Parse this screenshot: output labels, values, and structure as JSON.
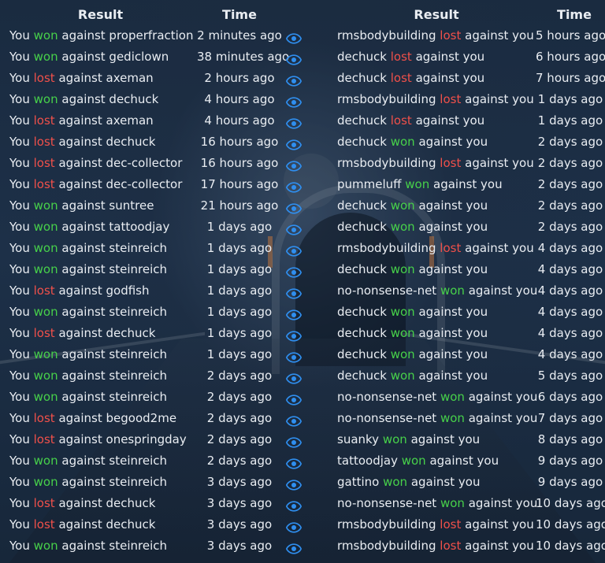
{
  "header": {
    "result_left": "Result",
    "time_left": "Time",
    "result_right": "Result",
    "time_right": "Time"
  },
  "colors": {
    "won": "#47d14a",
    "lost": "#f0504a",
    "eye": "#2f8ff0"
  },
  "icons": {
    "view": "eye-icon"
  },
  "rows": [
    {
      "left": {
        "prefix": "You",
        "outcome": "won",
        "suffix": "against properfraction",
        "time": "2 minutes ago"
      },
      "right": {
        "player": "rmsbodybuilding",
        "outcome": "lost",
        "suffix": "against you",
        "time": "5 hours ago"
      }
    },
    {
      "left": {
        "prefix": "You",
        "outcome": "won",
        "suffix": "against gediclown",
        "time": "38 minutes ago"
      },
      "right": {
        "player": "dechuck",
        "outcome": "lost",
        "suffix": "against you",
        "time": "6 hours ago"
      }
    },
    {
      "left": {
        "prefix": "You",
        "outcome": "lost",
        "suffix": "against axeman",
        "time": "2 hours ago"
      },
      "right": {
        "player": "dechuck",
        "outcome": "lost",
        "suffix": "against you",
        "time": "7 hours ago"
      }
    },
    {
      "left": {
        "prefix": "You",
        "outcome": "won",
        "suffix": "against dechuck",
        "time": "4 hours ago"
      },
      "right": {
        "player": "rmsbodybuilding",
        "outcome": "lost",
        "suffix": "against you",
        "time": "1 days ago"
      }
    },
    {
      "left": {
        "prefix": "You",
        "outcome": "lost",
        "suffix": "against axeman",
        "time": "4 hours ago"
      },
      "right": {
        "player": "dechuck",
        "outcome": "lost",
        "suffix": "against you",
        "time": "1 days ago"
      }
    },
    {
      "left": {
        "prefix": "You",
        "outcome": "lost",
        "suffix": "against dechuck",
        "time": "16 hours ago"
      },
      "right": {
        "player": "dechuck",
        "outcome": "won",
        "suffix": "against you",
        "time": "2 days ago"
      }
    },
    {
      "left": {
        "prefix": "You",
        "outcome": "lost",
        "suffix": "against dec-collector",
        "time": "16 hours ago"
      },
      "right": {
        "player": "rmsbodybuilding",
        "outcome": "lost",
        "suffix": "against you",
        "time": "2 days ago"
      }
    },
    {
      "left": {
        "prefix": "You",
        "outcome": "lost",
        "suffix": "against dec-collector",
        "time": "17 hours ago"
      },
      "right": {
        "player": "pummeluff",
        "outcome": "won",
        "suffix": "against you",
        "time": "2 days ago"
      }
    },
    {
      "left": {
        "prefix": "You",
        "outcome": "won",
        "suffix": "against suntree",
        "time": "21 hours ago"
      },
      "right": {
        "player": "dechuck",
        "outcome": "won",
        "suffix": "against you",
        "time": "2 days ago"
      }
    },
    {
      "left": {
        "prefix": "You",
        "outcome": "won",
        "suffix": "against tattoodjay",
        "time": "1 days ago"
      },
      "right": {
        "player": "dechuck",
        "outcome": "won",
        "suffix": "against you",
        "time": "2 days ago"
      }
    },
    {
      "left": {
        "prefix": "You",
        "outcome": "won",
        "suffix": "against steinreich",
        "time": "1 days ago"
      },
      "right": {
        "player": "rmsbodybuilding",
        "outcome": "lost",
        "suffix": "against you",
        "time": "4 days ago"
      }
    },
    {
      "left": {
        "prefix": "You",
        "outcome": "won",
        "suffix": "against steinreich",
        "time": "1 days ago"
      },
      "right": {
        "player": "dechuck",
        "outcome": "won",
        "suffix": "against you",
        "time": "4 days ago"
      }
    },
    {
      "left": {
        "prefix": "You",
        "outcome": "lost",
        "suffix": "against godfish",
        "time": "1 days ago"
      },
      "right": {
        "player": "no-nonsense-net",
        "outcome": "won",
        "suffix": "against you",
        "time": "4 days ago"
      }
    },
    {
      "left": {
        "prefix": "You",
        "outcome": "won",
        "suffix": "against steinreich",
        "time": "1 days ago"
      },
      "right": {
        "player": "dechuck",
        "outcome": "won",
        "suffix": "against you",
        "time": "4 days ago"
      }
    },
    {
      "left": {
        "prefix": "You",
        "outcome": "lost",
        "suffix": "against dechuck",
        "time": "1 days ago"
      },
      "right": {
        "player": "dechuck",
        "outcome": "won",
        "suffix": "against you",
        "time": "4 days ago"
      }
    },
    {
      "left": {
        "prefix": "You",
        "outcome": "won",
        "suffix": "against steinreich",
        "time": "1 days ago"
      },
      "right": {
        "player": "dechuck",
        "outcome": "won",
        "suffix": "against you",
        "time": "4 days ago"
      }
    },
    {
      "left": {
        "prefix": "You",
        "outcome": "won",
        "suffix": "against steinreich",
        "time": "2 days ago"
      },
      "right": {
        "player": "dechuck",
        "outcome": "won",
        "suffix": "against you",
        "time": "5 days ago"
      }
    },
    {
      "left": {
        "prefix": "You",
        "outcome": "won",
        "suffix": "against steinreich",
        "time": "2 days ago"
      },
      "right": {
        "player": "no-nonsense-net",
        "outcome": "won",
        "suffix": "against you",
        "time": "6 days ago"
      }
    },
    {
      "left": {
        "prefix": "You",
        "outcome": "lost",
        "suffix": "against begood2me",
        "time": "2 days ago"
      },
      "right": {
        "player": "no-nonsense-net",
        "outcome": "won",
        "suffix": "against you",
        "time": "7 days ago"
      }
    },
    {
      "left": {
        "prefix": "You",
        "outcome": "lost",
        "suffix": "against onespringday",
        "time": "2 days ago"
      },
      "right": {
        "player": "suanky",
        "outcome": "won",
        "suffix": "against you",
        "time": "8 days ago"
      }
    },
    {
      "left": {
        "prefix": "You",
        "outcome": "won",
        "suffix": "against steinreich",
        "time": "2 days ago"
      },
      "right": {
        "player": "tattoodjay",
        "outcome": "won",
        "suffix": "against you",
        "time": "9 days ago"
      }
    },
    {
      "left": {
        "prefix": "You",
        "outcome": "won",
        "suffix": "against steinreich",
        "time": "3 days ago"
      },
      "right": {
        "player": "gattino",
        "outcome": "won",
        "suffix": "against you",
        "time": "9 days ago"
      }
    },
    {
      "left": {
        "prefix": "You",
        "outcome": "lost",
        "suffix": "against dechuck",
        "time": "3 days ago"
      },
      "right": {
        "player": "no-nonsense-net",
        "outcome": "won",
        "suffix": "against you",
        "time": "10 days ago"
      }
    },
    {
      "left": {
        "prefix": "You",
        "outcome": "lost",
        "suffix": "against dechuck",
        "time": "3 days ago"
      },
      "right": {
        "player": "rmsbodybuilding",
        "outcome": "lost",
        "suffix": "against you",
        "time": "10 days ago"
      }
    },
    {
      "left": {
        "prefix": "You",
        "outcome": "won",
        "suffix": "against steinreich",
        "time": "3 days ago"
      },
      "right": {
        "player": "rmsbodybuilding",
        "outcome": "lost",
        "suffix": "against you",
        "time": "10 days ago"
      }
    }
  ]
}
